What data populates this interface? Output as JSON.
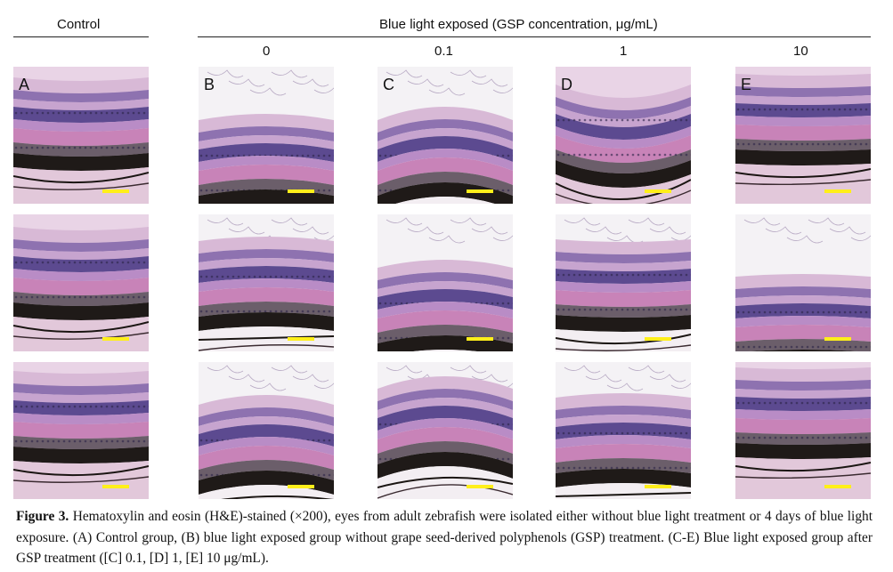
{
  "header": {
    "control": "Control",
    "exposed": "Blue light exposed (GSP concentration, μg/mL)",
    "concentrations": [
      "0",
      "0.1",
      "1",
      "10"
    ]
  },
  "panel_labels": [
    "A",
    "B",
    "C",
    "D",
    "E"
  ],
  "caption": {
    "figure_label": "Figure 3.",
    "text": "Hematoxylin and eosin (H&E)-stained (×200), eyes from adult zebrafish were isolated either without blue light treatment or 4 days of blue light exposure. (A) Control group, (B) blue light exposed group without grape seed-derived polyphenols (GSP) treatment. (C-E) Blue light exposed group after GSP treatment ([C] 0.1, [D] 1, [E] 10 μg/mL)."
  },
  "colors": {
    "scale_bar": "#ffef1a",
    "photoreceptor": "#4a6a3a",
    "pigment": "#1a1512",
    "pink_layer": "#c883b8",
    "purple_layer": "#6f5a9a"
  }
}
